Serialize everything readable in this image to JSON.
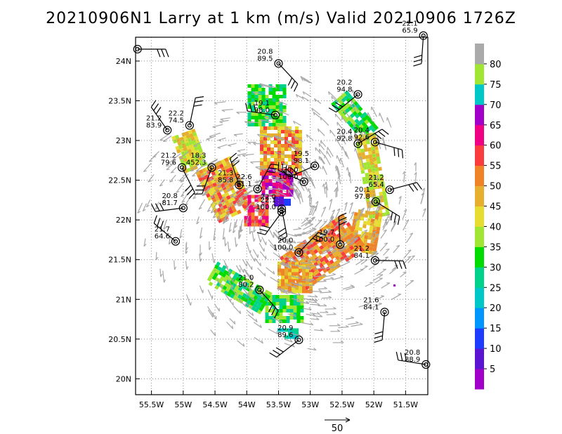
{
  "title": "20210906N1 Larry at 1 km (m/s) Valid 20210906 1726Z",
  "chart_data": {
    "type": "wind_barb_map",
    "title": "20210906N1 Larry at 1 km (m/s) Valid 20210906 1726Z",
    "xlim": [
      -55.75,
      -51.15
    ],
    "ylim": [
      19.8,
      24.3
    ],
    "x_ticks": [
      {
        "value": -55.5,
        "label": "55.5W"
      },
      {
        "value": -55,
        "label": "55W"
      },
      {
        "value": -54.5,
        "label": "54.5W"
      },
      {
        "value": -54,
        "label": "54W"
      },
      {
        "value": -53.5,
        "label": "53.5W"
      },
      {
        "value": -53,
        "label": "53W"
      },
      {
        "value": -52.5,
        "label": "52.5W"
      },
      {
        "value": -52,
        "label": "52W"
      },
      {
        "value": -51.5,
        "label": "51.5W"
      }
    ],
    "y_ticks": [
      {
        "value": 20,
        "label": "20N"
      },
      {
        "value": 20.5,
        "label": "20.5N"
      },
      {
        "value": 21,
        "label": "21N"
      },
      {
        "value": 21.5,
        "label": "21.5N"
      },
      {
        "value": 22,
        "label": "22N"
      },
      {
        "value": 22.5,
        "label": "22.5N"
      },
      {
        "value": 23,
        "label": "23N"
      },
      {
        "value": 23.5,
        "label": "23.5N"
      },
      {
        "value": 24,
        "label": "24N"
      }
    ],
    "grid": true,
    "reference_vector": {
      "label": "50",
      "value": 50
    },
    "colorbar": {
      "levels": [
        5,
        10,
        15,
        20,
        25,
        30,
        35,
        40,
        45,
        50,
        55,
        60,
        65,
        70,
        75,
        80
      ],
      "colors": [
        "#a000c8",
        "#5a14d2",
        "#1e3cff",
        "#0096ff",
        "#00c8c8",
        "#00d28c",
        "#00dc00",
        "#a0e632",
        "#e6dc32",
        "#e6af2d",
        "#f08228",
        "#fa3c3c",
        "#f00082",
        "#a000c8",
        "#00c8c8",
        "#a0e632",
        "#aaaaaa"
      ]
    },
    "dropsondes": [
      {
        "lon": -55.72,
        "lat": 24.15,
        "top": "",
        "bottom": ""
      },
      {
        "lon": -53.5,
        "lat": 23.97,
        "top": "20.8",
        "bottom": "89.5"
      },
      {
        "lon": -51.22,
        "lat": 24.32,
        "top": "22.1",
        "bottom": "65.9"
      },
      {
        "lon": -52.25,
        "lat": 23.58,
        "top": "20.2",
        "bottom": "94.8"
      },
      {
        "lon": -53.55,
        "lat": 23.32,
        "top": "19.1",
        "bottom": "98.0"
      },
      {
        "lon": -55.25,
        "lat": 23.13,
        "top": "21.2",
        "bottom": "83.9"
      },
      {
        "lon": -54.9,
        "lat": 23.19,
        "top": "22.2",
        "bottom": "74.5"
      },
      {
        "lon": -52.25,
        "lat": 22.96,
        "top": "20.4",
        "bottom": "92.8"
      },
      {
        "lon": -51.98,
        "lat": 22.98,
        "top": "20.4",
        "bottom": "92.6"
      },
      {
        "lon": -55.02,
        "lat": 22.66,
        "top": "21.2",
        "bottom": "79.6"
      },
      {
        "lon": -54.55,
        "lat": 22.66,
        "top": "18.3",
        "bottom": "452.3"
      },
      {
        "lon": -52.93,
        "lat": 22.68,
        "top": "19.5",
        "bottom": "98.1"
      },
      {
        "lon": -53.1,
        "lat": 22.48,
        "top": "20.0",
        "bottom": "100.0"
      },
      {
        "lon": -54.12,
        "lat": 22.44,
        "top": "21.3",
        "bottom": "85.8"
      },
      {
        "lon": -53.83,
        "lat": 22.39,
        "top": "22.6",
        "bottom": "91.1"
      },
      {
        "lon": -51.75,
        "lat": 22.38,
        "top": "21.2",
        "bottom": "65.4"
      },
      {
        "lon": -51.97,
        "lat": 22.23,
        "top": "20.1",
        "bottom": "97.8"
      },
      {
        "lon": -53.45,
        "lat": 22.14,
        "top": "22.0",
        "bottom": ""
      },
      {
        "lon": -53.45,
        "lat": 22.1,
        "top": "22.1",
        "bottom": "100.0"
      },
      {
        "lon": -55.0,
        "lat": 22.15,
        "top": "20.8",
        "bottom": "81.7"
      },
      {
        "lon": -55.12,
        "lat": 21.73,
        "top": "21.7",
        "bottom": "64.6"
      },
      {
        "lon": -52.53,
        "lat": 21.69,
        "top": "19.7",
        "bottom": "100.0"
      },
      {
        "lon": -53.18,
        "lat": 21.59,
        "top": "20.0",
        "bottom": "100.0"
      },
      {
        "lon": -51.98,
        "lat": 21.49,
        "top": "21.2",
        "bottom": "84.1"
      },
      {
        "lon": -53.8,
        "lat": 21.12,
        "top": "21.0",
        "bottom": "80.2"
      },
      {
        "lon": -51.83,
        "lat": 20.84,
        "top": "21.6",
        "bottom": "84.1"
      },
      {
        "lon": -53.18,
        "lat": 20.49,
        "top": "20.9",
        "bottom": "89.6"
      },
      {
        "lon": -51.18,
        "lat": 20.18,
        "top": "20.8",
        "bottom": "88.9"
      }
    ]
  }
}
